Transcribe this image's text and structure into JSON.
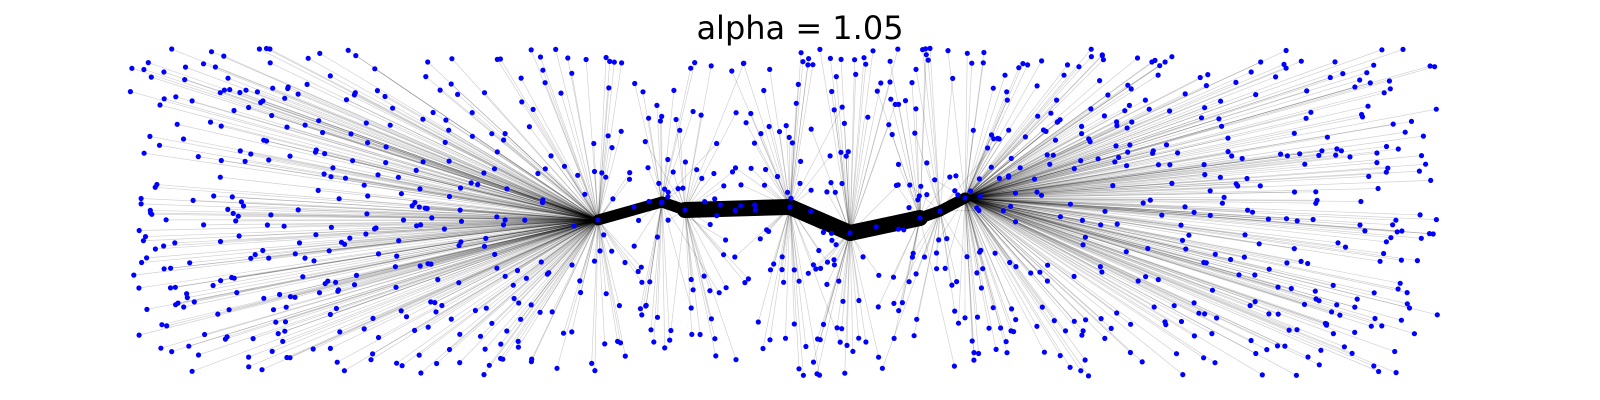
{
  "title": "alpha = 1.05",
  "colors": {
    "node": "#0000ff",
    "edge": "#000000",
    "background": "#ffffff"
  },
  "graph": {
    "description_kind": "spatial network with hub-and-spoke links",
    "hub_count": 8,
    "leaf_node_count": 1000,
    "backbone_style": "thick black path through hubs",
    "spoke_style": "thin gray lines from hubs to leaf nodes"
  }
}
